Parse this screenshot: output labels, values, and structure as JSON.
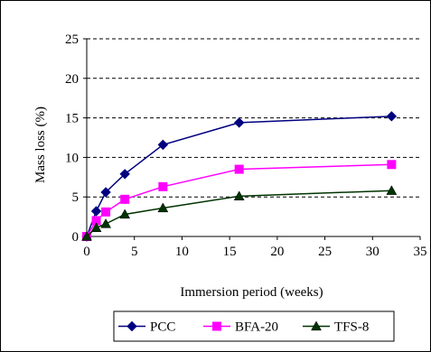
{
  "chart_data": {
    "type": "line",
    "title": "",
    "xlabel": "Immersion period (weeks)",
    "ylabel": "Mass loss (%)",
    "xlim": [
      0,
      35
    ],
    "ylim": [
      0,
      25
    ],
    "xticks": [
      0,
      5,
      10,
      15,
      20,
      25,
      30,
      35
    ],
    "yticks": [
      0,
      5,
      10,
      15,
      20,
      25
    ],
    "grid": "horizontal-dashed",
    "legend_position": "bottom",
    "series": [
      {
        "name": "PCC",
        "color": "#000080",
        "marker": "diamond",
        "x": [
          0,
          1,
          2,
          4,
          8,
          16,
          32
        ],
        "y": [
          0,
          3.2,
          5.6,
          7.9,
          11.6,
          14.4,
          15.2
        ]
      },
      {
        "name": "BFA-20",
        "color": "#FF00FF",
        "marker": "square",
        "x": [
          0,
          1,
          2,
          4,
          8,
          16,
          32
        ],
        "y": [
          0,
          2.0,
          3.1,
          4.7,
          6.3,
          8.5,
          9.1
        ]
      },
      {
        "name": "TFS-8",
        "color": "#003300",
        "marker": "triangle",
        "x": [
          0,
          1,
          2,
          4,
          8,
          16,
          32
        ],
        "y": [
          0,
          1.1,
          1.6,
          2.8,
          3.6,
          5.1,
          5.8
        ]
      }
    ]
  }
}
